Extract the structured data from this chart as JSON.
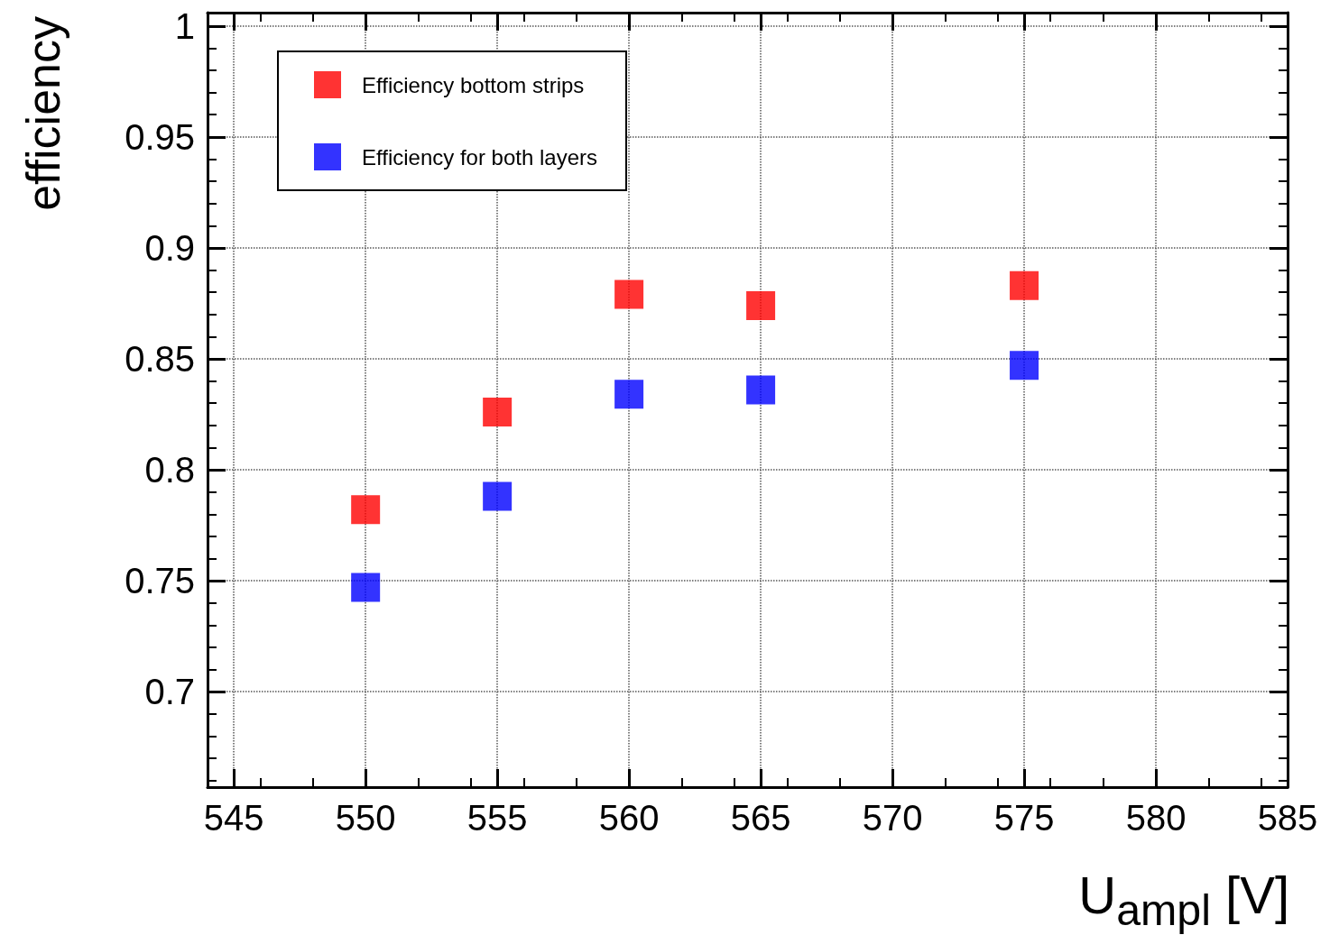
{
  "chart_data": {
    "type": "scatter",
    "xlabel": "U$_{ampl}$ [V]",
    "ylabel": "efficiency",
    "xlim": [
      544,
      585
    ],
    "xticks": [
      545,
      550,
      555,
      560,
      565,
      570,
      575,
      580,
      585
    ],
    "ylim": [
      0.657,
      1.006
    ],
    "yticks": [
      0.7,
      0.75,
      0.8,
      0.85,
      0.9,
      0.95,
      1
    ],
    "grid": true,
    "legend": "top left",
    "marker": "square",
    "series": [
      {
        "name": "Efficiency bottom strips",
        "color": "#ff0000",
        "x": [
          550,
          555,
          560,
          565,
          575
        ],
        "values": [
          0.782,
          0.826,
          0.879,
          0.874,
          0.883
        ]
      },
      {
        "name": "Efficiency for both layers",
        "color": "#0000ff",
        "x": [
          550,
          555,
          560,
          565,
          575
        ],
        "values": [
          0.747,
          0.788,
          0.834,
          0.836,
          0.847
        ]
      }
    ]
  }
}
